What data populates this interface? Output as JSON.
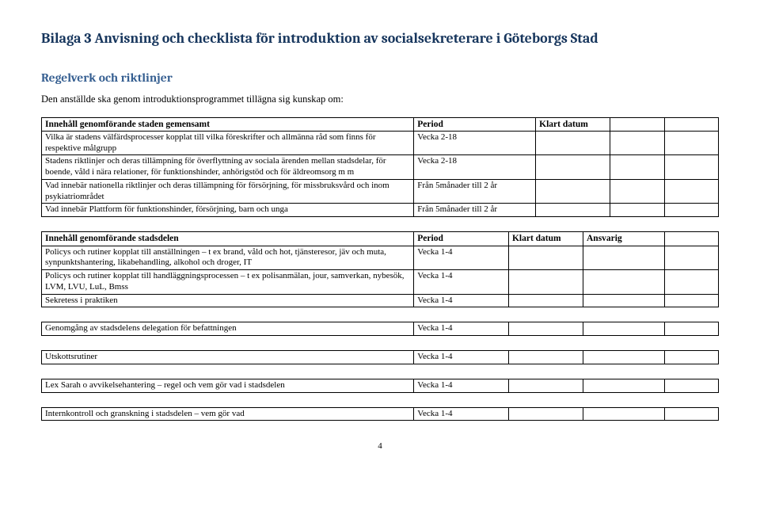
{
  "colors": {
    "title": "#17365d",
    "section": "#365f91",
    "border": "#000000",
    "background": "#ffffff",
    "text": "#000000"
  },
  "doc_title": "Bilaga 3 Anvisning och checklista för introduktion av socialsekreterare i Göteborgs Stad",
  "section1_title": "Regelverk och riktlinjer",
  "intro": "Den anställde ska genom introduktionsprogrammet tillägna sig kunskap om:",
  "table1": {
    "head_content": "Innehåll genomförande staden gemensamt",
    "head_period": "Period",
    "head_klart": "Klart datum",
    "rows": [
      {
        "c": "Vilka är stadens välfärdsprocesser kopplat till vilka föreskrifter och allmänna råd som finns för respektive målgrupp",
        "p": "Vecka 2-18"
      },
      {
        "c": "Stadens riktlinjer och deras tillämpning för överflyttning av sociala ärenden mellan stadsdelar, för boende, våld i nära relationer, för funktionshinder, anhörigstöd och för äldreomsorg m m",
        "p": "Vecka 2-18"
      },
      {
        "c": "Vad innebär nationella riktlinjer och deras tillämpning för försörjning, för missbruksvård och inom psykiatriområdet",
        "p": "Från 5månader till 2 år"
      },
      {
        "c": "Vad innebär Plattform för funktionshinder, försörjning, barn och unga",
        "p": "Från 5månader till 2 år"
      }
    ]
  },
  "table2": {
    "head_content": "Innehåll genomförande stadsdelen",
    "head_period": "Period",
    "head_klart": "Klart datum",
    "head_ansvarig": "Ansvarig",
    "rows": [
      {
        "c": "Policys och rutiner kopplat till anställningen – t ex brand, våld och hot, tjänsteresor, jäv och muta, synpunktshantering, likabehandling, alkohol och droger, IT",
        "p": "Vecka 1-4"
      },
      {
        "c": "Policys och rutiner kopplat till handläggningsprocessen – t ex polisanmälan, jour, samverkan, nybesök, LVM, LVU, LuL, Bmss",
        "p": "Vecka 1-4"
      },
      {
        "c": "Sekretess i praktiken",
        "p": "Vecka 1-4"
      }
    ],
    "gap_rows": [
      {
        "c": "Genomgång av stadsdelens delegation för befattningen",
        "p": "Vecka 1-4"
      },
      {
        "c": "Utskottsrutiner",
        "p": "Vecka 1-4"
      },
      {
        "c": "Lex Sarah o avvikelsehantering – regel och vem gör vad i stadsdelen",
        "p": "Vecka 1-4"
      },
      {
        "c": "Internkontroll och granskning i stadsdelen – vem gör vad",
        "p": "Vecka 1-4"
      }
    ]
  },
  "page_number": "4"
}
